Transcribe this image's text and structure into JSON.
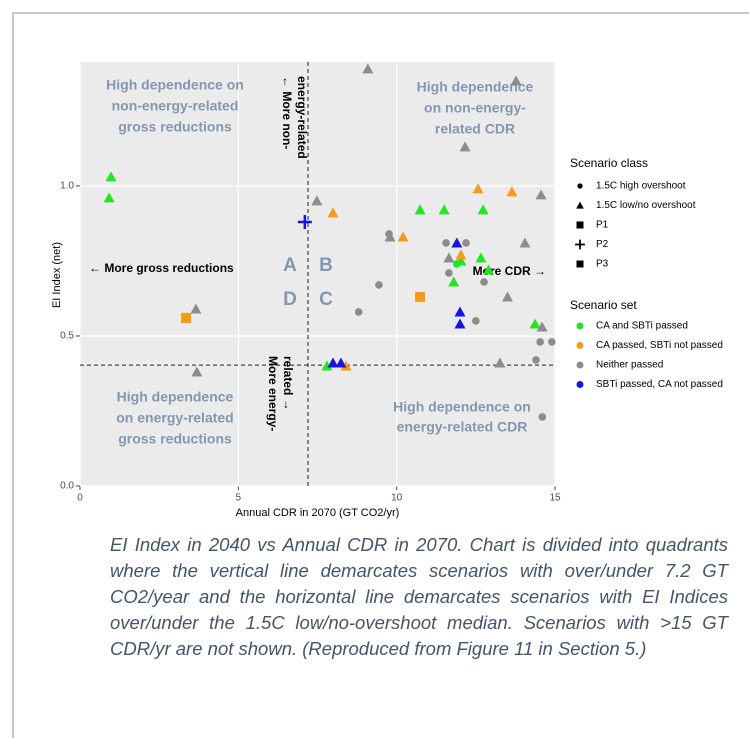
{
  "chart_data": {
    "type": "scatter",
    "xlabel": "Annual CDR in 2070 (GT CO2/yr)",
    "ylabel": "EI Index (net)",
    "xlim": [
      0,
      15
    ],
    "ylim": [
      0,
      1.413
    ],
    "xticks": [
      0,
      5,
      10,
      15
    ],
    "yticks": [
      {
        "value": 0,
        "label": "0.0"
      },
      0.5,
      {
        "value": 1,
        "label": "1.0"
      }
    ],
    "grid": true,
    "reference_lines": {
      "x": 7.2,
      "y": 0.403
    },
    "series": [
      {
        "color": "#22e622",
        "shape": "triangle",
        "x": [
          0.98,
          0.92,
          10.74,
          11.5,
          12.73,
          12.03,
          12.66,
          11.8,
          12.9,
          14.37,
          7.8
        ],
        "y": [
          1.03,
          0.96,
          0.92,
          0.92,
          0.92,
          0.75,
          0.76,
          0.68,
          0.72,
          0.54,
          0.4
        ]
      },
      {
        "color": "#22e622",
        "shape": "circle",
        "x": [
          11.9
        ],
        "y": [
          0.74
        ]
      },
      {
        "color": "#f79a17",
        "shape": "triangle",
        "x": [
          7.99,
          10.2,
          12.57,
          13.64,
          12.03,
          8.4
        ],
        "y": [
          0.91,
          0.83,
          0.99,
          0.98,
          0.77,
          0.4
        ]
      },
      {
        "color": "#f79a17",
        "shape": "square",
        "x": [
          3.35,
          10.74
        ],
        "y": [
          0.56,
          0.63
        ]
      },
      {
        "color": "#8c8c8c",
        "shape": "triangle",
        "x": [
          9.09,
          13.77,
          7.48,
          12.16,
          14.56,
          3.66,
          3.69,
          14.05,
          13.5,
          13.26,
          14.59,
          9.79,
          11.65
        ],
        "y": [
          1.39,
          1.35,
          0.95,
          1.13,
          0.97,
          0.59,
          0.38,
          0.81,
          0.63,
          0.41,
          0.53,
          0.83,
          0.76
        ]
      },
      {
        "color": "#8c8c8c",
        "shape": "circle",
        "x": [
          9.76,
          11.56,
          12.19,
          11.65,
          12.76,
          9.44,
          8.8,
          12.5,
          14.53,
          14.4,
          14.6,
          14.9
        ],
        "y": [
          0.84,
          0.81,
          0.81,
          0.71,
          0.68,
          0.67,
          0.58,
          0.55,
          0.48,
          0.42,
          0.23,
          0.48
        ]
      },
      {
        "color": "#1414e6",
        "shape": "triangle",
        "x": [
          11.9,
          12.0,
          12.0,
          7.99,
          8.24
        ],
        "y": [
          0.81,
          0.58,
          0.54,
          0.41,
          0.41
        ]
      },
      {
        "color": "#1414e6",
        "shape": "plus",
        "x": [
          7.1
        ],
        "y": [
          0.88
        ]
      }
    ],
    "shape_legend": {
      "title": "Scenario class",
      "items": [
        {
          "label": "1.5C high overshoot",
          "shape": "circle"
        },
        {
          "label": "1.5C low/no overshoot",
          "shape": "triangle"
        },
        {
          "label": "P1",
          "shape": "square"
        },
        {
          "label": "P2",
          "shape": "plus"
        },
        {
          "label": "P3",
          "shape": "square"
        }
      ]
    },
    "color_legend": {
      "title": "Scenario set",
      "items": [
        {
          "label": "CA and SBTi passed",
          "color": "#22e622"
        },
        {
          "label": "CA passed, SBTi not passed",
          "color": "#f79a17"
        },
        {
          "label": "Neither passed",
          "color": "#8c8c8c"
        },
        {
          "label": "SBTi passed, CA not passed",
          "color": "#1414e6"
        }
      ]
    },
    "quadrant_notes": [
      [
        "High dependence on",
        "non-energy-related",
        "gross reductions"
      ],
      [
        "High dependence",
        "on non-energy-",
        "related CDR"
      ],
      [
        "High dependence",
        "on energy-related",
        "gross reductions"
      ],
      [
        "High dependence on",
        "energy-related CDR"
      ]
    ],
    "quadrant_letters": [
      "A",
      "B",
      "D",
      "C"
    ],
    "arrow_notes": [
      "← More gross reductions",
      "More CDR →"
    ],
    "vertical_notes": [
      [
        "← More non-",
        "energy-related"
      ],
      [
        "More energy-",
        "related →"
      ]
    ]
  },
  "caption": "EI Index in 2040 vs Annual CDR in 2070. Chart is divided into quadrants where the vertical line demarcates scenarios with over/under 7.2 GT CO2/year and the horizontal line demarcates scenarios with EI Indices over/under the 1.5C low/no-overshoot median. Scenarios with >15 GT CDR/yr are not shown. (Reproduced from Figure 11 in Section 5.)"
}
